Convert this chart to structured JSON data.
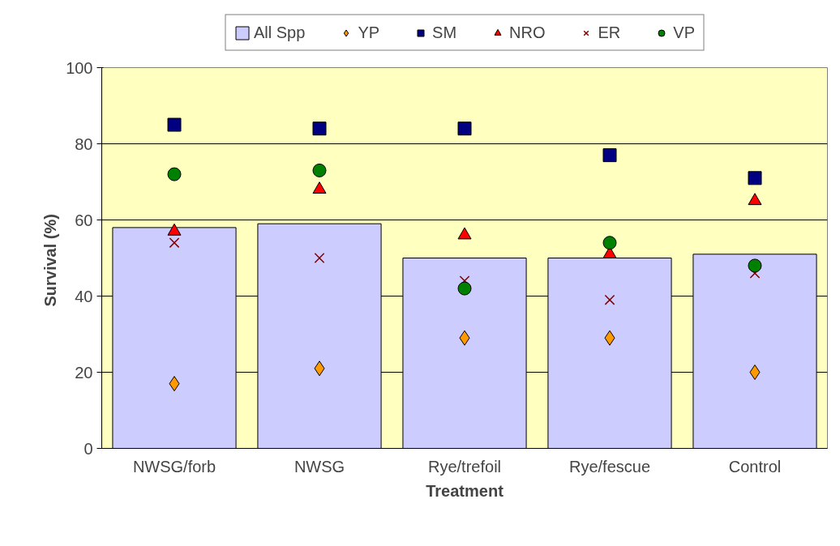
{
  "chart_data": {
    "type": "bar",
    "xlabel": "Treatment",
    "ylabel": "Survival  (%)",
    "categories": [
      "NWSG/forb",
      "NWSG",
      "Rye/trefoil",
      "Rye/fescue",
      "Control"
    ],
    "series": [
      {
        "name": "All Spp",
        "color": "#ccccff",
        "values": [
          58,
          59,
          50,
          50,
          51
        ]
      },
      {
        "name": "YP",
        "type": "scatter",
        "marker": "diamond",
        "color": "#ff9900",
        "values": [
          17,
          21,
          29,
          29,
          20
        ]
      },
      {
        "name": "SM",
        "type": "scatter",
        "marker": "square",
        "color": "#000080",
        "values": [
          85,
          84,
          84,
          77,
          71
        ]
      },
      {
        "name": "NRO",
        "type": "scatter",
        "marker": "triangle",
        "color": "#ff0000",
        "values": [
          57,
          68,
          56,
          51,
          65
        ]
      },
      {
        "name": "ER",
        "type": "scatter",
        "marker": "cross",
        "color": "#800000",
        "values": [
          54,
          50,
          44,
          39,
          46
        ]
      },
      {
        "name": "VP",
        "type": "scatter",
        "marker": "circle",
        "color": "#008000",
        "values": [
          72,
          73,
          42,
          54,
          48
        ]
      }
    ],
    "ylim": [
      0,
      100
    ],
    "yticks": [
      0,
      20,
      40,
      60,
      80,
      100
    ],
    "grid": "y",
    "legend": "top"
  }
}
